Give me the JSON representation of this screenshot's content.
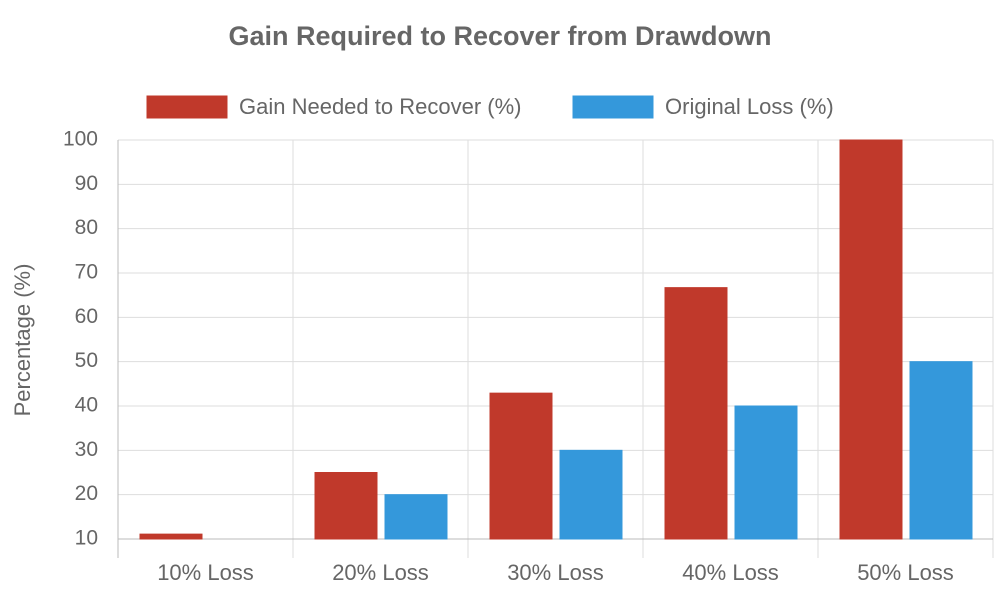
{
  "chart_data": {
    "type": "bar",
    "title": "Gain Required to Recover from Drawdown",
    "y_label": "Percentage (%)",
    "categories": [
      "10% Loss",
      "20% Loss",
      "30% Loss",
      "40% Loss",
      "50% Loss"
    ],
    "series": [
      {
        "name": "Gain Needed to Recover (%)",
        "color": "#c0392b",
        "values": [
          11.1,
          25,
          42.9,
          66.7,
          100
        ]
      },
      {
        "name": "Original Loss (%)",
        "color": "#3498db",
        "values": [
          10,
          20,
          30,
          40,
          50
        ]
      }
    ],
    "ylim": [
      10,
      100
    ],
    "yticks": [
      10,
      20,
      30,
      40,
      50,
      60,
      70,
      80,
      90,
      100
    ],
    "grid": true,
    "legend": "top"
  }
}
